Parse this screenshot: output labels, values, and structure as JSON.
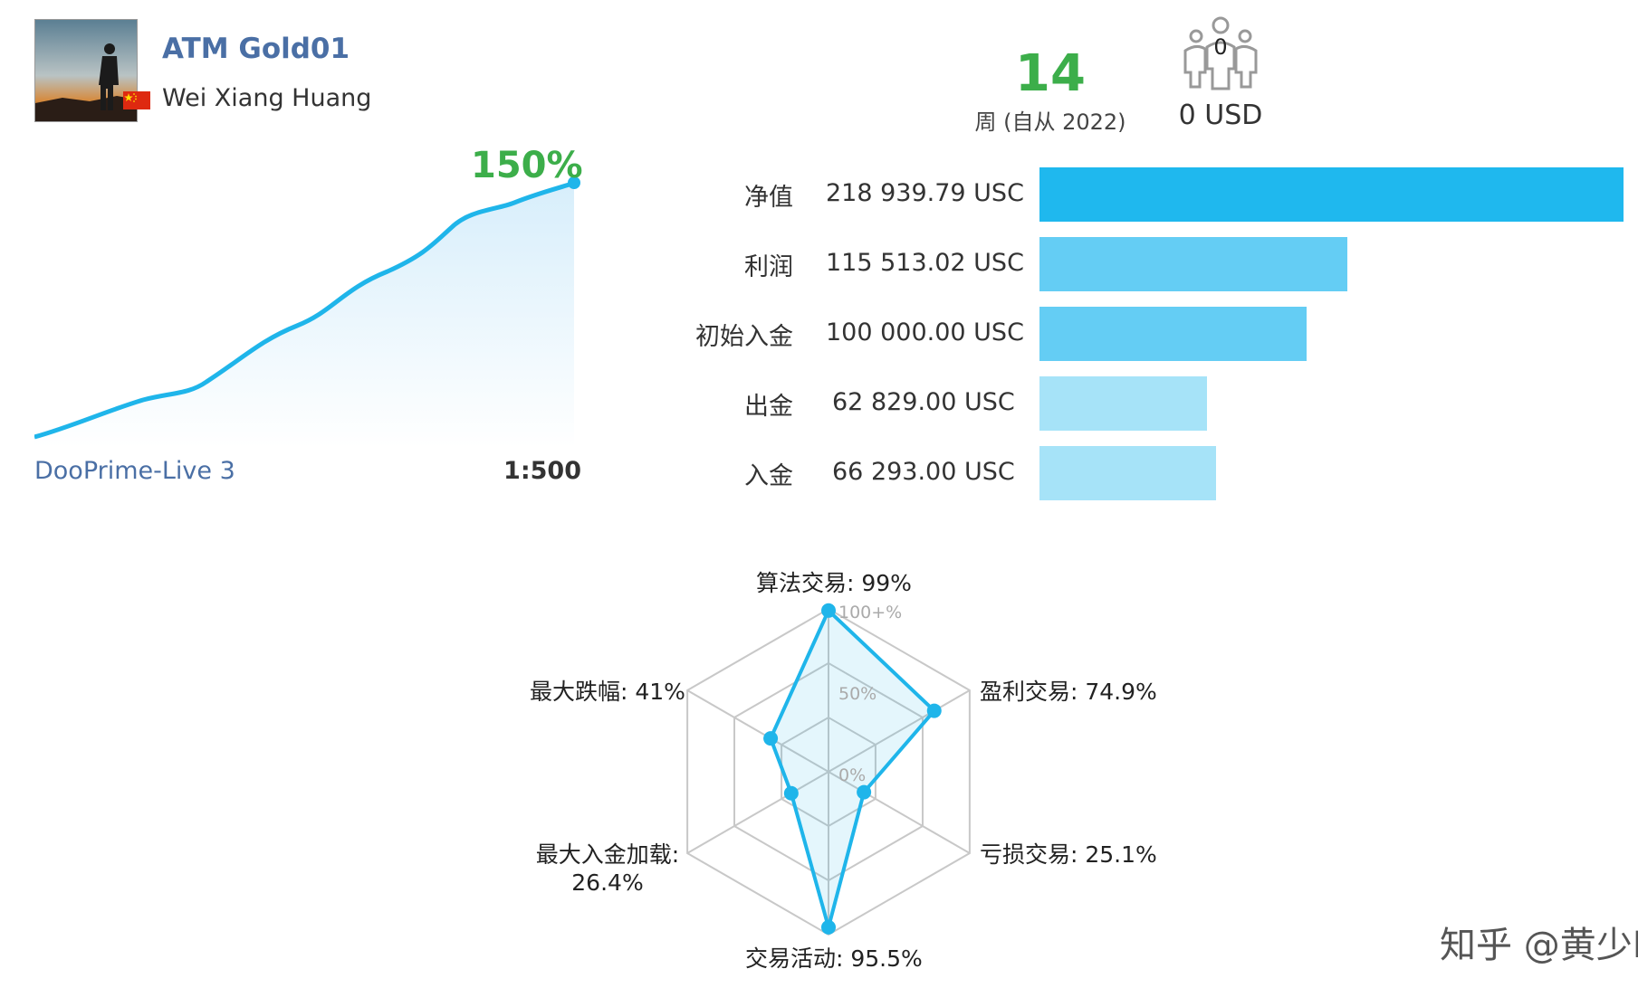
{
  "header": {
    "account_name": "ATM Gold01",
    "owner_name": "Wei Xiang Huang",
    "weeks_count": "14",
    "weeks_label": "周 (自从 2022)",
    "subscribers_count": "0",
    "subscribers_value": "0 USD"
  },
  "growth": {
    "percent_label": "150%",
    "server": "DooPrime-Live 3",
    "leverage": "1:500",
    "line_color": "#1fb5ea"
  },
  "stats": [
    {
      "label": "净值",
      "value": "218 939.79 USC",
      "amount": 218939.79,
      "color": "#1fb8ee"
    },
    {
      "label": "利润",
      "value": "115 513.02 USC",
      "amount": 115513.02,
      "color": "#64cdf4"
    },
    {
      "label": "初始入金",
      "value": "100 000.00 USC",
      "amount": 100000.0,
      "color": "#64cdf4"
    },
    {
      "label": "出金",
      "value": "62 829.00 USC",
      "amount": 62829.0,
      "color": "#a6e3f8"
    },
    {
      "label": "入金",
      "value": "66 293.00 USC",
      "amount": 66293.0,
      "color": "#a6e3f8"
    }
  ],
  "radar": {
    "scale_labels": [
      "100+%",
      "50%",
      "0%"
    ],
    "axes": [
      {
        "label": "算法交易: 99%",
        "value": 99
      },
      {
        "label": "盈利交易: 74.9%",
        "value": 74.9
      },
      {
        "label": "亏损交易: 25.1%",
        "value": 25.1
      },
      {
        "label": "交易活动: 95.5%",
        "value": 95.5
      },
      {
        "label_line1": "最大入金加载:",
        "label_line2": "26.4%",
        "value": 26.4
      },
      {
        "label": "最大跌幅: 41%",
        "value": 41
      }
    ],
    "color": "#1fb5ea"
  },
  "watermark": "知乎 @黄少EA"
}
